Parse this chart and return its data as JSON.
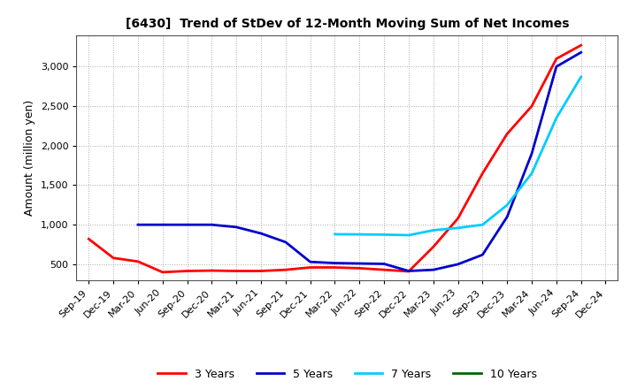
{
  "title": "[6430]  Trend of StDev of 12-Month Moving Sum of Net Incomes",
  "ylabel": "Amount (million yen)",
  "background_color": "#ffffff",
  "grid_color": "#aaaaaa",
  "ylim": [
    300,
    3400
  ],
  "yticks": [
    500,
    1000,
    1500,
    2000,
    2500,
    3000
  ],
  "series": {
    "3 Years": {
      "color": "#ff0000",
      "data": {
        "Sep-19": 820,
        "Dec-19": 580,
        "Mar-20": 535,
        "Jun-20": 400,
        "Sep-20": 415,
        "Dec-20": 420,
        "Mar-21": 415,
        "Jun-21": 415,
        "Sep-21": 430,
        "Dec-21": 460,
        "Mar-22": 460,
        "Jun-22": 450,
        "Sep-22": 430,
        "Dec-22": 410,
        "Mar-23": 720,
        "Jun-23": 1080,
        "Sep-23": 1650,
        "Dec-23": 2150,
        "Mar-24": 2500,
        "Jun-24": 3100,
        "Sep-24": 3270
      }
    },
    "5 Years": {
      "color": "#0000cc",
      "data": {
        "Mar-20": 1000,
        "Jun-20": 1000,
        "Sep-20": 1000,
        "Dec-20": 1000,
        "Mar-21": 970,
        "Jun-21": 890,
        "Sep-21": 780,
        "Dec-21": 530,
        "Mar-22": 515,
        "Jun-22": 510,
        "Sep-22": 505,
        "Dec-22": 415,
        "Mar-23": 430,
        "Jun-23": 500,
        "Sep-23": 620,
        "Dec-23": 1100,
        "Mar-24": 1900,
        "Jun-24": 3000,
        "Sep-24": 3180
      }
    },
    "7 Years": {
      "color": "#00ccff",
      "data": {
        "Mar-22": 880,
        "Jun-22": 878,
        "Sep-22": 875,
        "Dec-22": 868,
        "Mar-23": 930,
        "Jun-23": 960,
        "Sep-23": 1000,
        "Dec-23": 1250,
        "Mar-24": 1650,
        "Jun-24": 2350,
        "Sep-24": 2870
      }
    },
    "10 Years": {
      "color": "#006600",
      "data": {}
    }
  },
  "x_tick_labels": [
    "Sep-19",
    "Dec-19",
    "Mar-20",
    "Jun-20",
    "Sep-20",
    "Dec-20",
    "Mar-21",
    "Jun-21",
    "Sep-21",
    "Dec-21",
    "Mar-22",
    "Jun-22",
    "Sep-22",
    "Dec-22",
    "Mar-23",
    "Jun-23",
    "Sep-23",
    "Dec-23",
    "Mar-24",
    "Jun-24",
    "Sep-24",
    "Dec-24"
  ]
}
